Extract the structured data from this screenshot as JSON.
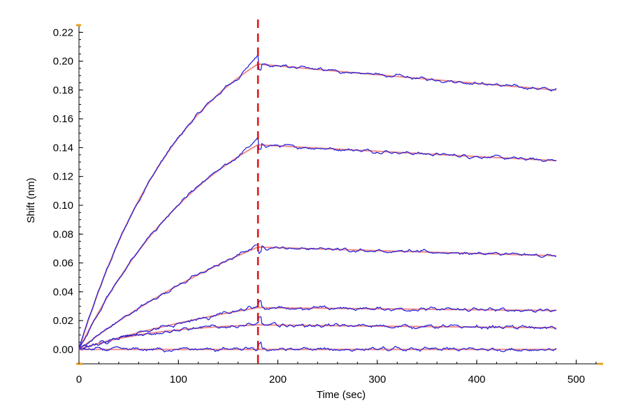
{
  "chart_data": {
    "type": "line",
    "title": "",
    "xlabel": "Time (sec)",
    "ylabel": "Shift (nm)",
    "xlim": [
      0,
      525
    ],
    "ylim": [
      -0.01,
      0.225
    ],
    "x_ticks": [
      0,
      100,
      200,
      300,
      400,
      500
    ],
    "x_tick_labels": [
      "0",
      "100",
      "200",
      "300",
      "400",
      "500"
    ],
    "y_ticks": [
      0.0,
      0.02,
      0.04,
      0.06,
      0.08,
      0.1,
      0.12,
      0.14,
      0.16,
      0.18,
      0.2,
      0.22
    ],
    "y_tick_labels": [
      "0.00",
      "0.02",
      "0.04",
      "0.06",
      "0.08",
      "0.10",
      "0.12",
      "0.14",
      "0.16",
      "0.18",
      "0.20",
      "0.22"
    ],
    "association_end": 180,
    "dissociation_end": 480,
    "grid": false,
    "colors": {
      "measured": "#1a1adb",
      "fit": "#f08a8a",
      "marker": "#e01010",
      "axis_accent": "#e8a020"
    },
    "series": [
      {
        "peak": 0.198,
        "end": 0.18,
        "tau_assoc": 110,
        "noise": 0.0024
      },
      {
        "peak": 0.142,
        "end": 0.131,
        "tau_assoc": 140,
        "noise": 0.0024
      },
      {
        "peak": 0.071,
        "end": 0.065,
        "tau_assoc": 300,
        "noise": 0.0024
      },
      {
        "peak": 0.029,
        "end": 0.027,
        "tau_assoc": 300,
        "noise": 0.0028
      },
      {
        "peak": 0.017,
        "end": 0.015,
        "tau_assoc": 80,
        "noise": 0.0028
      },
      {
        "peak": 0.0,
        "end": 0.0,
        "tau_assoc": 100,
        "noise": 0.0028
      }
    ]
  }
}
